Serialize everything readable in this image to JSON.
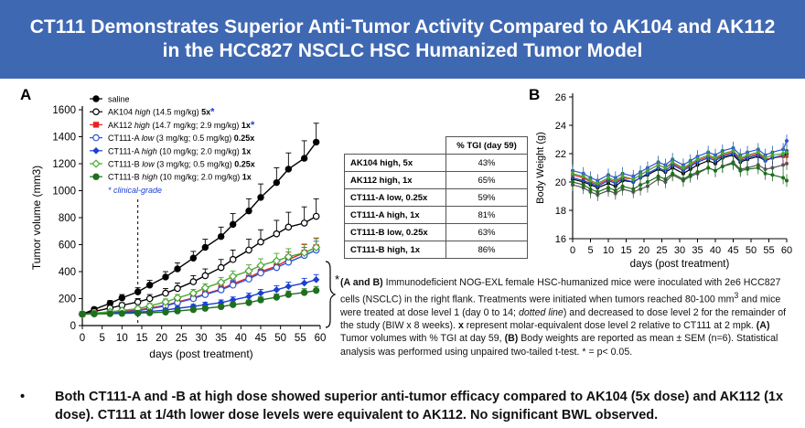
{
  "banner": {
    "line1": "CT111 Demonstrates Superior Anti-Tumor Activity Compared to AK104 and AK112",
    "line2": "in the HCC827 NSCLC HSC Humanized Tumor Model"
  },
  "panel_a_label": "A",
  "panel_b_label": "B",
  "legend": [
    {
      "pre": "saline",
      "it": "",
      "post": "",
      "bold": "",
      "star": ""
    },
    {
      "pre": "AK104 ",
      "it": "high",
      "post": " (14.5 mg/kg) ",
      "bold": "5x",
      "star": "*"
    },
    {
      "pre": "AK112 ",
      "it": "high",
      "post": " (14.7 mg/kg; 2.9 mg/kg) ",
      "bold": "1x",
      "star": "*"
    },
    {
      "pre": "CT111-A ",
      "it": "low",
      "post": " (3 mg/kg; 0.5 mg/kg) ",
      "bold": "0.25x",
      "star": ""
    },
    {
      "pre": "CT111-A ",
      "it": "high",
      "post": " (10 mg/kg; 2.0 mg/kg) ",
      "bold": "1x",
      "star": ""
    },
    {
      "pre": "CT111-B ",
      "it": "low",
      "post": " (3 mg/kg; 0.5 mg/kg) ",
      "bold": "0.25x",
      "star": ""
    },
    {
      "pre": "CT111-B ",
      "it": "high",
      "post": " (10 mg/kg; 2.0 mg/kg) ",
      "bold": "1x",
      "star": ""
    }
  ],
  "legend_note": "* clinical-grade",
  "sig_star": "*",
  "tgi_table": {
    "header": "% TGI (day 59)",
    "rows": [
      {
        "label": "AK104 high, 5x",
        "value": "43%"
      },
      {
        "label": "AK112 high, 1x",
        "value": "65%"
      },
      {
        "label": "CT111-A low, 0.25x",
        "value": "59%"
      },
      {
        "label": "CT111-A high, 1x",
        "value": "81%"
      },
      {
        "label": "CT111-B low, 0.25x",
        "value": "63%"
      },
      {
        "label": "CT111-B high, 1x",
        "value": "86%"
      }
    ]
  },
  "caption": {
    "p1_bold": "(A and B)",
    "p1": " Immunodeficient NOG-EXL female HSC-humanized mice were inoculated with 2e6 HCC827 cells (NSCLC) in the right flank. Treatments were initiated when tumors reached 80-100 mm",
    "p1_sup": "3",
    "p2": " and mice were treated at dose level 1 (day 0 to 14; ",
    "p2_it": "dotted line",
    "p3": ") and decreased to dose level 2 for the remainder of the study (BIW x 8 weeks). ",
    "p3_bold": "x",
    "p4": " represent molar-equivalent dose level 2 relative to CT111 at 2 mpk. ",
    "p4_bold": "(A)",
    "p5": " Tumor volumes with % TGI at day 59, ",
    "p5_bold": "(B)",
    "p6": " Body weights are reported as mean ± SEM (n=6). Statistical analysis was performed using unpaired two-tailed t-test. * = p< 0.05."
  },
  "bullet": {
    "dot": "•",
    "text": "Both CT111-A and -B at high dose showed superior anti-tumor efficacy compared to AK104 (5x dose) and AK112 (1x dose). CT111 at 1/4th lower dose levels were equivalent to AK112. No significant BWL observed."
  },
  "chart_data": [
    {
      "type": "line",
      "panel": "A",
      "xlabel": "days (post treatment)",
      "ylabel": "Tumor volume (mm3)",
      "xlim": [
        0,
        60
      ],
      "ylim": [
        0,
        1600
      ],
      "xticks": [
        0,
        5,
        10,
        15,
        20,
        25,
        30,
        35,
        40,
        45,
        50,
        55,
        60
      ],
      "yticks": [
        0,
        200,
        400,
        600,
        800,
        1000,
        1200,
        1400,
        1600
      ],
      "dose_change_day": 14,
      "x": [
        0,
        3,
        7,
        10,
        14,
        17,
        21,
        24,
        28,
        31,
        35,
        38,
        42,
        45,
        49,
        52,
        56,
        59
      ],
      "series": [
        {
          "name": "saline",
          "color": "#000000",
          "marker": "filled-circle",
          "values": [
            85,
            120,
            165,
            205,
            250,
            300,
            360,
            420,
            500,
            580,
            660,
            750,
            850,
            950,
            1060,
            1160,
            1240,
            1360
          ],
          "sem": [
            10,
            15,
            20,
            25,
            30,
            35,
            40,
            45,
            50,
            60,
            70,
            80,
            90,
            100,
            110,
            120,
            130,
            140
          ]
        },
        {
          "name": "AK104 high",
          "color": "#000000",
          "marker": "open-circle",
          "values": [
            85,
            105,
            130,
            150,
            175,
            200,
            240,
            275,
            325,
            370,
            430,
            490,
            560,
            620,
            680,
            730,
            760,
            810
          ],
          "sem": [
            10,
            12,
            15,
            20,
            25,
            30,
            35,
            40,
            45,
            50,
            60,
            70,
            80,
            90,
            100,
            110,
            120,
            130
          ]
        },
        {
          "name": "AK112 high",
          "color": "#e8231f",
          "marker": "filled-square",
          "values": [
            85,
            92,
            100,
            105,
            115,
            130,
            150,
            175,
            205,
            235,
            270,
            310,
            355,
            400,
            440,
            490,
            540,
            580
          ],
          "sem": [
            8,
            10,
            10,
            12,
            12,
            15,
            18,
            20,
            22,
            25,
            30,
            35,
            40,
            45,
            50,
            55,
            60,
            65
          ]
        },
        {
          "name": "CT111-A low",
          "color": "#2d55d8",
          "marker": "open-circle",
          "values": [
            85,
            90,
            95,
            100,
            110,
            125,
            145,
            170,
            200,
            230,
            265,
            300,
            345,
            390,
            430,
            470,
            520,
            560
          ],
          "sem": [
            8,
            10,
            10,
            12,
            12,
            15,
            18,
            20,
            22,
            25,
            30,
            35,
            40,
            45,
            50,
            55,
            60,
            65
          ]
        },
        {
          "name": "CT111-A high",
          "color": "#1a3fd1",
          "marker": "filled-diamond",
          "values": [
            85,
            88,
            92,
            96,
            100,
            105,
            115,
            128,
            142,
            155,
            170,
            190,
            215,
            240,
            265,
            290,
            315,
            340
          ],
          "sem": [
            8,
            8,
            10,
            10,
            10,
            12,
            12,
            15,
            15,
            18,
            20,
            22,
            25,
            28,
            30,
            32,
            35,
            38
          ]
        },
        {
          "name": "CT111-B low",
          "color": "#4aa832",
          "marker": "open-diamond",
          "values": [
            85,
            92,
            102,
            112,
            125,
            145,
            175,
            205,
            240,
            280,
            320,
            365,
            405,
            445,
            480,
            510,
            540,
            580
          ],
          "sem": [
            8,
            10,
            12,
            15,
            18,
            20,
            22,
            25,
            28,
            30,
            35,
            40,
            45,
            50,
            55,
            60,
            65,
            70
          ]
        },
        {
          "name": "CT111-B high",
          "color": "#1f6f1f",
          "marker": "filled-circle",
          "values": [
            85,
            86,
            88,
            90,
            92,
            95,
            100,
            108,
            118,
            128,
            140,
            155,
            170,
            190,
            210,
            230,
            245,
            260
          ],
          "sem": [
            8,
            8,
            8,
            10,
            10,
            10,
            12,
            12,
            14,
            15,
            16,
            18,
            20,
            22,
            24,
            26,
            28,
            30
          ]
        }
      ]
    },
    {
      "type": "line",
      "panel": "B",
      "xlabel": "days (post treatment)",
      "ylabel": "Body Weight (g)",
      "xlim": [
        0,
        60
      ],
      "ylim": [
        16,
        26
      ],
      "xticks": [
        0,
        5,
        10,
        15,
        20,
        25,
        30,
        35,
        40,
        45,
        50,
        55,
        60
      ],
      "yticks": [
        16,
        18,
        20,
        22,
        24,
        26
      ],
      "x": [
        0,
        3,
        5,
        7,
        10,
        12,
        14,
        17,
        19,
        21,
        24,
        26,
        28,
        31,
        33,
        35,
        38,
        40,
        42,
        45,
        47,
        49,
        52,
        54,
        56,
        59,
        60
      ],
      "series": [
        {
          "name": "saline",
          "color": "#000000",
          "values": [
            20.2,
            20.0,
            19.8,
            19.6,
            19.9,
            19.7,
            20.1,
            20.0,
            20.3,
            20.5,
            20.9,
            20.7,
            21.0,
            20.6,
            20.9,
            21.2,
            21.5,
            21.3,
            21.7,
            21.9,
            21.4,
            21.6,
            21.8,
            21.5,
            21.7,
            21.8,
            22.0
          ]
        },
        {
          "name": "AK104 high",
          "color": "#555555",
          "values": [
            19.8,
            19.6,
            19.3,
            19.1,
            19.4,
            19.2,
            19.5,
            19.3,
            19.5,
            19.7,
            20.2,
            20.0,
            20.5,
            20.1,
            20.4,
            20.6,
            21.0,
            20.8,
            21.1,
            21.4,
            20.9,
            21.0,
            21.2,
            20.9,
            21.0,
            21.2,
            21.3
          ]
        },
        {
          "name": "AK112 high",
          "color": "#e8231f",
          "values": [
            20.5,
            20.3,
            20.0,
            19.8,
            20.2,
            20.0,
            20.3,
            20.2,
            20.5,
            20.8,
            21.2,
            21.0,
            21.3,
            20.9,
            21.2,
            21.5,
            21.8,
            21.6,
            21.9,
            22.1,
            21.6,
            21.8,
            22.0,
            21.6,
            21.7,
            21.8,
            21.8
          ]
        },
        {
          "name": "CT111-A low",
          "color": "#2d55d8",
          "values": [
            20.8,
            20.6,
            20.3,
            20.1,
            20.5,
            20.3,
            20.6,
            20.4,
            20.7,
            21.0,
            21.4,
            21.2,
            21.6,
            21.2,
            21.5,
            21.8,
            22.1,
            21.9,
            22.2,
            22.4,
            21.9,
            22.1,
            22.3,
            21.9,
            22.1,
            22.3,
            22.9
          ]
        },
        {
          "name": "CT111-A high",
          "color": "#1a3fd1",
          "values": [
            20.3,
            20.1,
            19.9,
            19.7,
            20.1,
            19.9,
            20.2,
            20.0,
            20.3,
            20.6,
            21.0,
            20.8,
            21.2,
            20.8,
            21.1,
            21.4,
            21.7,
            21.5,
            21.8,
            22.0,
            21.5,
            21.7,
            21.9,
            21.5,
            21.7,
            21.9,
            22.2
          ]
        },
        {
          "name": "CT111-B low",
          "color": "#4aa832",
          "values": [
            20.6,
            20.4,
            20.1,
            19.9,
            20.3,
            20.1,
            20.4,
            20.2,
            20.5,
            20.8,
            21.2,
            21.0,
            21.4,
            21.0,
            21.3,
            21.6,
            21.9,
            21.7,
            22.0,
            22.2,
            21.7,
            21.9,
            22.1,
            21.7,
            21.9,
            22.0,
            22.1
          ]
        },
        {
          "name": "CT111-B high",
          "color": "#1f6f1f",
          "values": [
            20.0,
            19.8,
            19.5,
            19.3,
            19.6,
            19.4,
            19.7,
            19.5,
            19.8,
            20.0,
            20.4,
            20.2,
            20.6,
            20.2,
            20.5,
            20.7,
            21.0,
            20.8,
            21.1,
            21.3,
            20.8,
            20.9,
            21.0,
            20.6,
            20.5,
            20.3,
            20.1
          ]
        }
      ]
    }
  ]
}
